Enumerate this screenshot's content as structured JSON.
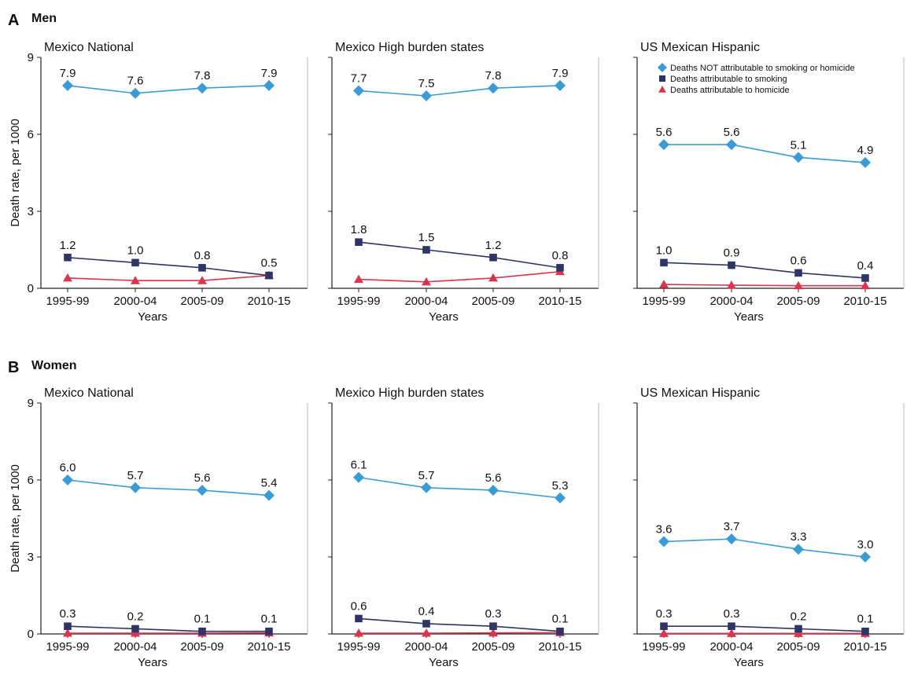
{
  "sections": [
    {
      "letter": "A",
      "title": "Men"
    },
    {
      "letter": "B",
      "title": "Women"
    }
  ],
  "legend": [
    {
      "label": "Deaths NOT attributable to smoking or homicide",
      "color": "#3a9bd5",
      "marker": "diamond"
    },
    {
      "label": "Deaths attributable to smoking",
      "color": "#2e3566",
      "marker": "square"
    },
    {
      "label": "Deaths attributable to homicide",
      "color": "#d9354c",
      "marker": "triangle"
    }
  ],
  "chart_data": [
    {
      "type": "line",
      "section": "Men",
      "title": "Mexico National",
      "categories": [
        "1995-99",
        "2000-04",
        "2005-09",
        "2010-15"
      ],
      "xlabel": "Years",
      "ylabel": "Death rate, per 1000",
      "ylim": [
        0,
        9
      ],
      "yticks": [
        "0",
        "3",
        "6",
        "9"
      ],
      "grid": false,
      "series": [
        {
          "name": "Deaths NOT attributable to smoking or homicide",
          "values": [
            7.9,
            7.6,
            7.8,
            7.9
          ],
          "labels": [
            "7.9",
            "7.6",
            "7.8",
            "7.9"
          ]
        },
        {
          "name": "Deaths attributable to smoking",
          "values": [
            1.2,
            1.0,
            0.8,
            0.5
          ],
          "labels": [
            "1.2",
            "1.0",
            "0.8",
            "0.5"
          ]
        },
        {
          "name": "Deaths attributable to homicide",
          "values": [
            0.4,
            0.3,
            0.3,
            0.5
          ],
          "labels": []
        }
      ]
    },
    {
      "type": "line",
      "section": "Men",
      "title": "Mexico High burden states",
      "categories": [
        "1995-99",
        "2000-04",
        "2005-09",
        "2010-15"
      ],
      "xlabel": "Years",
      "ylabel": "",
      "ylim": [
        0,
        9
      ],
      "yticks": [],
      "grid": false,
      "series": [
        {
          "name": "Deaths NOT attributable to smoking or homicide",
          "values": [
            7.7,
            7.5,
            7.8,
            7.9
          ],
          "labels": [
            "7.7",
            "7.5",
            "7.8",
            "7.9"
          ]
        },
        {
          "name": "Deaths attributable to smoking",
          "values": [
            1.8,
            1.5,
            1.2,
            0.8
          ],
          "labels": [
            "1.8",
            "1.5",
            "1.2",
            "0.8"
          ]
        },
        {
          "name": "Deaths attributable to homicide",
          "values": [
            0.35,
            0.25,
            0.4,
            0.65
          ],
          "labels": []
        }
      ]
    },
    {
      "type": "line",
      "section": "Men",
      "title": "US Mexican Hispanic",
      "categories": [
        "1995-99",
        "2000-04",
        "2005-09",
        "2010-15"
      ],
      "xlabel": "Years",
      "ylabel": "",
      "ylim": [
        0,
        9
      ],
      "yticks": [],
      "grid": false,
      "legend_position": "top-right",
      "series": [
        {
          "name": "Deaths NOT attributable to smoking or homicide",
          "values": [
            5.6,
            5.6,
            5.1,
            4.9
          ],
          "labels": [
            "5.6",
            "5.6",
            "5.1",
            "4.9"
          ]
        },
        {
          "name": "Deaths attributable to smoking",
          "values": [
            1.0,
            0.9,
            0.6,
            0.4
          ],
          "labels": [
            "1.0",
            "0.9",
            "0.6",
            "0.4"
          ]
        },
        {
          "name": "Deaths attributable to homicide",
          "values": [
            0.15,
            0.12,
            0.1,
            0.1
          ],
          "labels": []
        }
      ]
    },
    {
      "type": "line",
      "section": "Women",
      "title": "Mexico National",
      "categories": [
        "1995-99",
        "2000-04",
        "2005-09",
        "2010-15"
      ],
      "xlabel": "Years",
      "ylabel": "Death rate, per 1000",
      "ylim": [
        0,
        9
      ],
      "yticks": [
        "0",
        "3",
        "6",
        "9"
      ],
      "grid": false,
      "series": [
        {
          "name": "Deaths NOT attributable to smoking or homicide",
          "values": [
            6.0,
            5.7,
            5.6,
            5.4
          ],
          "labels": [
            "6.0",
            "5.7",
            "5.6",
            "5.4"
          ]
        },
        {
          "name": "Deaths attributable to smoking",
          "values": [
            0.3,
            0.2,
            0.1,
            0.1
          ],
          "labels": [
            "0.3",
            "0.2",
            "0.1",
            "0.1"
          ]
        },
        {
          "name": "Deaths attributable to homicide",
          "values": [
            0.03,
            0.03,
            0.03,
            0.04
          ],
          "labels": []
        }
      ]
    },
    {
      "type": "line",
      "section": "Women",
      "title": "Mexico High burden states",
      "categories": [
        "1995-99",
        "2000-04",
        "2005-09",
        "2010-15"
      ],
      "xlabel": "Years",
      "ylabel": "",
      "ylim": [
        0,
        9
      ],
      "yticks": [],
      "grid": false,
      "series": [
        {
          "name": "Deaths NOT attributable to smoking or homicide",
          "values": [
            6.1,
            5.7,
            5.6,
            5.3
          ],
          "labels": [
            "6.1",
            "5.7",
            "5.6",
            "5.3"
          ]
        },
        {
          "name": "Deaths attributable to smoking",
          "values": [
            0.6,
            0.4,
            0.3,
            0.1
          ],
          "labels": [
            "0.6",
            "0.4",
            "0.3",
            "0.1"
          ]
        },
        {
          "name": "Deaths attributable to homicide",
          "values": [
            0.03,
            0.03,
            0.04,
            0.05
          ],
          "labels": []
        }
      ]
    },
    {
      "type": "line",
      "section": "Women",
      "title": "US Mexican Hispanic",
      "categories": [
        "1995-99",
        "2000-04",
        "2005-09",
        "2010-15"
      ],
      "xlabel": "Years",
      "ylabel": "",
      "ylim": [
        0,
        9
      ],
      "yticks": [],
      "grid": false,
      "series": [
        {
          "name": "Deaths NOT attributable to smoking or homicide",
          "values": [
            3.6,
            3.7,
            3.3,
            3.0
          ],
          "labels": [
            "3.6",
            "3.7",
            "3.3",
            "3.0"
          ]
        },
        {
          "name": "Deaths attributable to smoking",
          "values": [
            0.3,
            0.3,
            0.2,
            0.1
          ],
          "labels": [
            "0.3",
            "0.3",
            "0.2",
            "0.1"
          ]
        },
        {
          "name": "Deaths attributable to homicide",
          "values": [
            0.02,
            0.02,
            0.02,
            0.02
          ],
          "labels": []
        }
      ]
    }
  ]
}
